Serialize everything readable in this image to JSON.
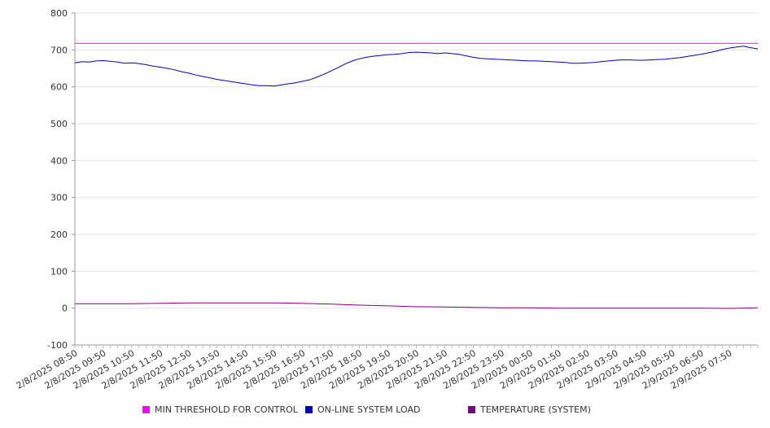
{
  "chart_data": {
    "type": "line",
    "title": "",
    "xlabel": "",
    "ylabel": "",
    "ylim": [
      -100,
      800
    ],
    "yticks": [
      "800",
      "700",
      "600",
      "500",
      "400",
      "300",
      "200",
      "100",
      "0",
      "-100"
    ],
    "grid": true,
    "legend_position": "bottom",
    "x_tick_labels": [
      "2/8/2025 08:50",
      "2/8/2025 09:50",
      "2/8/2025 10:50",
      "2/8/2025 11:50",
      "2/8/2025 12:50",
      "2/8/2025 13:50",
      "2/8/2025 14:50",
      "2/8/2025 15:50",
      "2/8/2025 16:50",
      "2/8/2025 17:50",
      "2/8/2025 18:50",
      "2/8/2025 19:50",
      "2/8/2025 20:50",
      "2/8/2025 21:50",
      "2/8/2025 22:50",
      "2/8/2025 23:50",
      "2/9/2025 00:50",
      "2/9/2025 01:50",
      "2/9/2025 02:50",
      "2/9/2025 03:50",
      "2/9/2025 04:50",
      "2/9/2025 05:50",
      "2/9/2025 06:50",
      "2/9/2025 07:50"
    ],
    "x_tick_hours": [
      0,
      1,
      2,
      3,
      4,
      5,
      6,
      7,
      8,
      9,
      10,
      11,
      12,
      13,
      14,
      15,
      16,
      17,
      18,
      19,
      20,
      21,
      22,
      23
    ],
    "x_range_hours": [
      0,
      24
    ],
    "series": [
      {
        "name": "MIN THRESHOLD FOR CONTROL",
        "color": "#ff00ff",
        "x_hours": [
          0,
          24
        ],
        "values": [
          718,
          718
        ]
      },
      {
        "name": "ON-LINE SYSTEM LOAD",
        "color": "#0000cc",
        "x_hours": [
          0,
          0.25,
          0.5,
          0.75,
          1,
          1.25,
          1.5,
          1.75,
          2,
          2.25,
          2.5,
          2.75,
          3,
          3.25,
          3.5,
          3.75,
          4,
          4.25,
          4.5,
          4.75,
          5,
          5.25,
          5.5,
          5.75,
          6,
          6.25,
          6.5,
          6.75,
          7,
          7.25,
          7.5,
          7.75,
          8,
          8.25,
          8.5,
          8.75,
          9,
          9.25,
          9.5,
          9.75,
          10,
          10.25,
          10.5,
          10.75,
          11,
          11.25,
          11.5,
          11.75,
          12,
          12.25,
          12.5,
          12.75,
          13,
          13.25,
          13.5,
          13.75,
          14,
          14.25,
          14.5,
          14.75,
          15,
          15.25,
          15.5,
          15.75,
          16,
          16.25,
          16.5,
          16.75,
          17,
          17.25,
          17.5,
          17.75,
          18,
          18.25,
          18.5,
          18.75,
          19,
          19.25,
          19.5,
          19.75,
          20,
          20.25,
          20.5,
          20.75,
          21,
          21.25,
          21.5,
          21.75,
          22,
          22.25,
          22.5,
          22.75,
          23,
          23.25,
          23.5,
          23.75,
          24
        ],
        "values": [
          665,
          668,
          667,
          670,
          671,
          669,
          667,
          664,
          665,
          663,
          660,
          656,
          653,
          650,
          646,
          641,
          637,
          632,
          628,
          624,
          620,
          617,
          614,
          611,
          608,
          605,
          603,
          603,
          602,
          605,
          608,
          611,
          615,
          619,
          626,
          634,
          643,
          652,
          662,
          670,
          676,
          680,
          683,
          685,
          687,
          688,
          690,
          693,
          694,
          693,
          692,
          690,
          692,
          690,
          688,
          684,
          680,
          677,
          676,
          675,
          674,
          673,
          672,
          671,
          670,
          670,
          669,
          668,
          667,
          666,
          664,
          664,
          665,
          666,
          668,
          670,
          672,
          673,
          673,
          672,
          672,
          673,
          674,
          675,
          677,
          679,
          682,
          685,
          688,
          692,
          696,
          701,
          705,
          708,
          710,
          706,
          703
        ]
      },
      {
        "name": "TEMPERATURE (SYSTEM)",
        "color": "#800080",
        "x_hours": [
          0,
          1,
          2,
          3,
          4,
          5,
          6,
          7,
          8,
          9,
          10,
          11,
          12,
          13,
          14,
          15,
          16,
          17,
          18,
          19,
          20,
          21,
          22,
          23,
          24
        ],
        "values": [
          12,
          12,
          12,
          13,
          14,
          14,
          14,
          14,
          13,
          11,
          8,
          6,
          4,
          3,
          2,
          1,
          1,
          0,
          0,
          0,
          0,
          0,
          0,
          -1,
          1
        ]
      }
    ]
  }
}
